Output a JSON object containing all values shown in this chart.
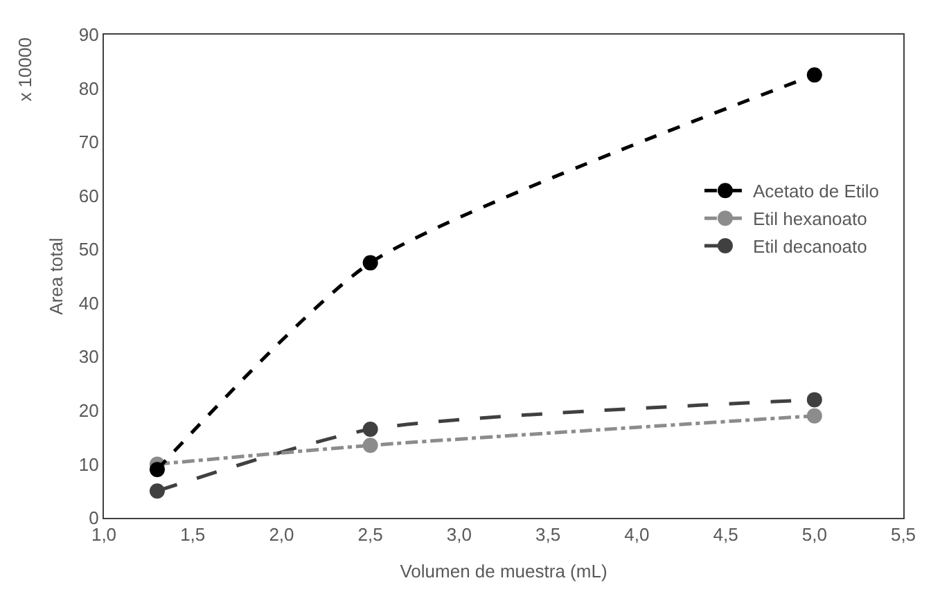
{
  "chart_data": {
    "type": "line",
    "xlabel": "Volumen de muestra (mL)",
    "ylabel": "Area total",
    "annotations": [
      "x 10000"
    ],
    "x": [
      1.3,
      2.5,
      5.0
    ],
    "series": [
      {
        "name": "Acetato de Etilo",
        "color": "#000000",
        "values": [
          9,
          47.5,
          82.5
        ],
        "line_style": "dashed"
      },
      {
        "name": "Etil hexanoato",
        "color": "#8c8c8c",
        "values": [
          10,
          13.5,
          19
        ],
        "line_style": "dashdot"
      },
      {
        "name": "Etil decanoato",
        "color": "#404040",
        "values": [
          5,
          16.5,
          22
        ],
        "line_style": "longdash"
      }
    ],
    "xlim": [
      1.0,
      5.5
    ],
    "xticks": [
      {
        "value": 1.0,
        "label": "1,0"
      },
      {
        "value": 1.5,
        "label": "1,5"
      },
      {
        "value": 2.0,
        "label": "2,0"
      },
      {
        "value": 2.5,
        "label": "2,5"
      },
      {
        "value": 3.0,
        "label": "3,0"
      },
      {
        "value": 3.5,
        "label": "3,5"
      },
      {
        "value": 4.0,
        "label": "4,0"
      },
      {
        "value": 4.5,
        "label": "4,5"
      },
      {
        "value": 5.0,
        "label": "5,0"
      },
      {
        "value": 5.5,
        "label": "5,5"
      }
    ],
    "ylim": [
      0,
      90
    ],
    "yticks": [
      0,
      10,
      20,
      30,
      40,
      50,
      60,
      70,
      80,
      90
    ],
    "grid": false,
    "legend": "right",
    "marker": "circle"
  }
}
